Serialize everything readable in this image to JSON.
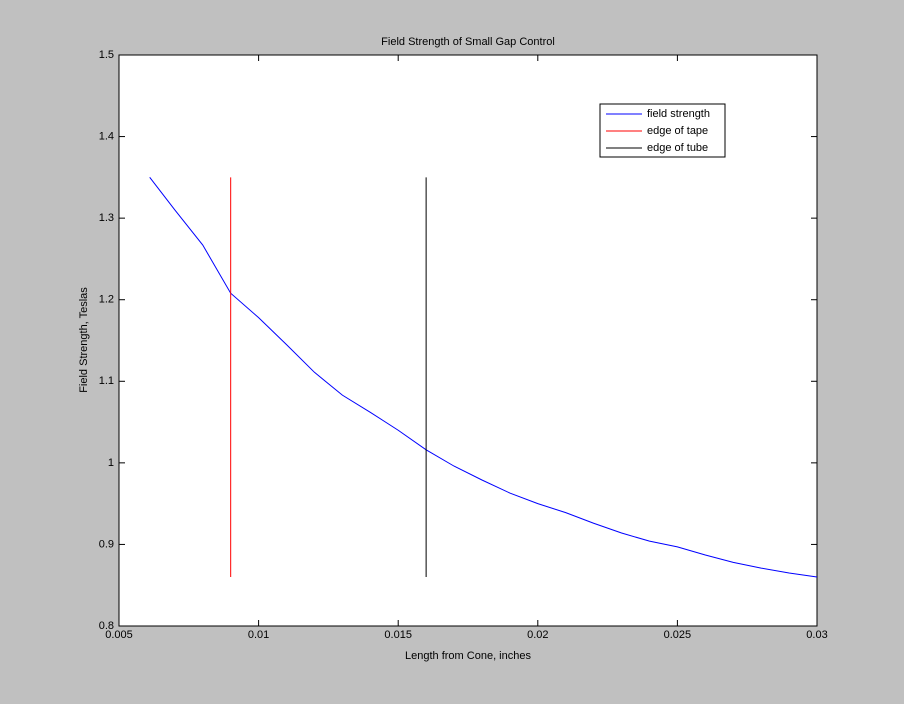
{
  "chart_data": {
    "type": "line",
    "title": "Field Strength of Small Gap Control",
    "x_label": "Length from Cone, inches",
    "y_label": "Field Strength, Teslas",
    "xlim": [
      0.005,
      0.03
    ],
    "ylim": [
      0.8,
      1.5
    ],
    "xticks": [
      0.005,
      0.01,
      0.015,
      0.02,
      0.025,
      0.03
    ],
    "yticks": [
      0.8,
      0.9,
      1,
      1.1,
      1.2,
      1.3,
      1.4,
      1.5
    ],
    "legend_position": "northeast",
    "series": [
      {
        "name": "field strength",
        "color": "#0000ff",
        "x": [
          0.0061,
          0.007,
          0.008,
          0.009,
          0.01,
          0.011,
          0.012,
          0.013,
          0.014,
          0.015,
          0.016,
          0.017,
          0.018,
          0.019,
          0.02,
          0.021,
          0.022,
          0.023,
          0.024,
          0.025,
          0.026,
          0.027,
          0.028,
          0.029,
          0.03
        ],
        "values": [
          1.35,
          1.31,
          1.267,
          1.208,
          1.178,
          1.145,
          1.111,
          1.083,
          1.062,
          1.04,
          1.016,
          0.996,
          0.979,
          0.963,
          0.95,
          0.939,
          0.926,
          0.914,
          0.904,
          0.897,
          0.887,
          0.878,
          0.871,
          0.865,
          0.86
        ]
      },
      {
        "name": "edge of tape",
        "color": "#ff0000",
        "x": [
          0.009,
          0.009
        ],
        "values": [
          0.86,
          1.35
        ]
      },
      {
        "name": "edge of tube",
        "color": "#000000",
        "x": [
          0.016,
          0.016
        ],
        "values": [
          0.86,
          1.35
        ]
      }
    ]
  }
}
